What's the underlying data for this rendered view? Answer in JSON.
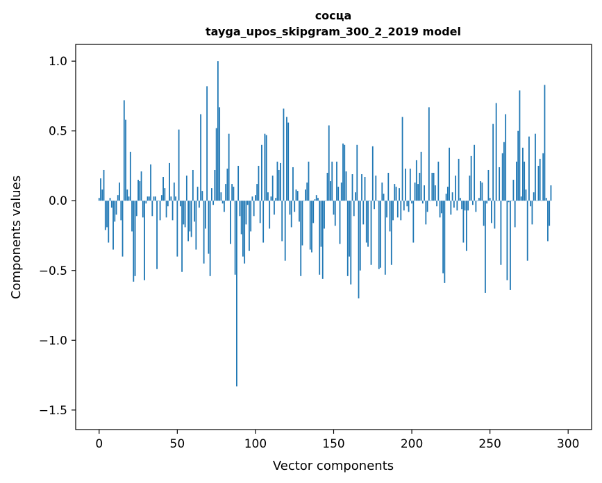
{
  "chart_data": {
    "type": "bar",
    "title": "сосца",
    "subtitle": "tayga_upos_skipgram_300_2_2019 model",
    "xlabel": "Vector components",
    "ylabel": "Components values",
    "xlim": [
      -15,
      315
    ],
    "ylim": [
      -1.64,
      1.12
    ],
    "xticks": [
      0,
      50,
      100,
      150,
      200,
      250,
      300
    ],
    "yticks": [
      -1.5,
      -1.0,
      -0.5,
      0.0,
      0.5,
      1.0
    ],
    "ytick_labels": [
      "−1.5",
      "−1.0",
      "−0.5",
      "0.0",
      "0.5",
      "1.0"
    ],
    "grid": false,
    "color": "#1f77b4",
    "values": [
      0.02,
      0.16,
      0.08,
      0.22,
      -0.21,
      -0.19,
      -0.3,
      0.02,
      -0.05,
      -0.35,
      -0.15,
      -0.1,
      0.04,
      0.13,
      -0.14,
      -0.4,
      0.72,
      0.58,
      0.08,
      0.03,
      0.35,
      -0.22,
      -0.58,
      -0.54,
      -0.11,
      0.15,
      0.14,
      0.21,
      -0.12,
      -0.57,
      -0.02,
      0.03,
      0.03,
      0.26,
      -0.11,
      0.03,
      0.03,
      -0.49,
      0.0,
      -0.14,
      0.04,
      0.17,
      0.09,
      -0.12,
      -0.04,
      0.27,
      0.03,
      -0.14,
      0.13,
      0.03,
      -0.4,
      0.51,
      -0.04,
      -0.51,
      -0.17,
      -0.19,
      0.18,
      -0.29,
      -0.22,
      -0.26,
      0.22,
      -0.15,
      -0.35,
      0.1,
      -0.05,
      0.62,
      0.07,
      -0.45,
      -0.2,
      0.82,
      -0.38,
      -0.54,
      0.09,
      -0.03,
      0.22,
      0.52,
      1.0,
      0.67,
      0.06,
      -0.02,
      -0.08,
      0.12,
      0.23,
      0.48,
      -0.31,
      0.12,
      0.1,
      -0.53,
      -1.33,
      0.25,
      -0.11,
      -0.24,
      -0.4,
      -0.45,
      -0.17,
      -0.03,
      -0.36,
      -0.22,
      0.03,
      -0.11,
      0.04,
      0.12,
      0.25,
      -0.16,
      0.4,
      -0.3,
      0.48,
      0.47,
      0.06,
      -0.2,
      0.03,
      0.18,
      -0.1,
      0.02,
      0.28,
      0.22,
      0.27,
      -0.29,
      0.66,
      -0.43,
      0.6,
      0.56,
      -0.1,
      -0.19,
      0.24,
      -0.08,
      0.08,
      0.07,
      -0.15,
      -0.54,
      -0.32,
      0.0,
      0.08,
      0.13,
      0.28,
      -0.35,
      -0.37,
      -0.16,
      0.01,
      0.04,
      0.02,
      -0.53,
      -0.33,
      -0.56,
      -0.2,
      0.0,
      0.2,
      0.54,
      0.14,
      0.28,
      -0.1,
      -0.18,
      0.28,
      0.1,
      -0.31,
      0.13,
      0.41,
      0.4,
      0.21,
      -0.54,
      -0.4,
      -0.6,
      0.19,
      -0.11,
      0.06,
      0.4,
      -0.7,
      -0.5,
      0.19,
      -0.17,
      0.17,
      -0.3,
      -0.33,
      0.0,
      -0.46,
      0.39,
      -0.06,
      0.18,
      0.0,
      -0.49,
      -0.48,
      0.13,
      0.05,
      -0.53,
      -0.12,
      0.2,
      -0.22,
      -0.46,
      -0.14,
      0.12,
      0.1,
      -0.12,
      0.09,
      -0.14,
      0.6,
      -0.07,
      0.23,
      -0.04,
      -0.08,
      0.23,
      -0.02,
      -0.3,
      0.13,
      0.29,
      0.12,
      0.2,
      0.35,
      -0.02,
      0.11,
      -0.17,
      -0.08,
      0.67,
      0.0,
      0.2,
      0.2,
      0.11,
      -0.04,
      0.28,
      -0.12,
      -0.09,
      -0.52,
      -0.59,
      0.05,
      0.1,
      0.38,
      -0.1,
      0.06,
      -0.05,
      0.18,
      -0.07,
      0.3,
      0.02,
      -0.06,
      -0.3,
      -0.07,
      -0.36,
      -0.07,
      0.18,
      0.32,
      -0.03,
      0.4,
      -0.08,
      0.0,
      0.02,
      0.14,
      0.13,
      -0.18,
      -0.66,
      -0.02,
      0.22,
      0.02,
      -0.16,
      0.55,
      -0.2,
      0.7,
      0.0,
      0.24,
      -0.46,
      0.34,
      0.42,
      0.62,
      -0.57,
      -0.01,
      -0.64,
      0.0,
      0.15,
      -0.19,
      0.28,
      0.5,
      0.79,
      0.03,
      0.38,
      0.28,
      0.08,
      -0.43,
      0.46,
      -0.04,
      -0.17,
      0.06,
      0.48,
      0.0,
      0.25,
      0.3,
      0.0,
      0.34,
      0.83,
      0.02,
      -0.29,
      -0.18,
      0.11
    ]
  }
}
